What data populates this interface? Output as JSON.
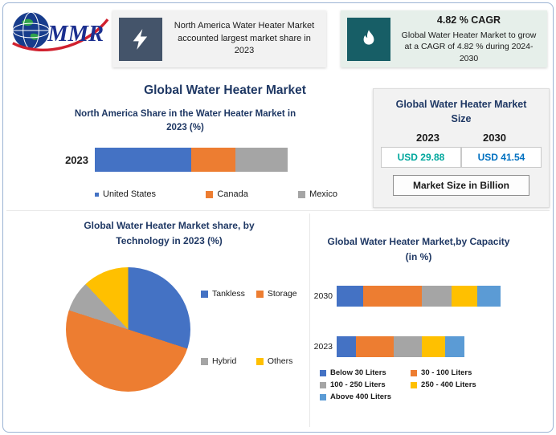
{
  "page": {
    "main_title": "Global Water Heater Market"
  },
  "logo": {
    "text": "MMR"
  },
  "badges": {
    "north_america": {
      "icon": "lightning-bolt-icon",
      "text": "North America Water Heater Market accounted largest market share in 2023"
    },
    "cagr": {
      "icon": "flame-icon",
      "title": "4.82 % CAGR",
      "text": "Global Water Heater Market to grow at a CAGR of 4.82 % during 2024-2030"
    }
  },
  "market_size_panel": {
    "title": "Global Water Heater Market Size",
    "year_left": "2023",
    "year_right": "2030",
    "value_left": "USD 29.88",
    "value_right": "USD 41.54",
    "value_left_color": "#00A79D",
    "value_right_color": "#0070C0",
    "footer": "Market Size in Billion"
  },
  "chart_data": [
    {
      "type": "bar",
      "variant": "stacked-horizontal",
      "title": "North America Share in the Water Heater Market in 2023 (%)",
      "categories": [
        "2023"
      ],
      "series": [
        {
          "name": "United States",
          "color": "#4472C4",
          "values": [
            50
          ]
        },
        {
          "name": "Canada",
          "color": "#ED7D31",
          "values": [
            23
          ]
        },
        {
          "name": "Mexico",
          "color": "#A5A5A5",
          "values": [
            27
          ]
        }
      ],
      "xlim": [
        0,
        100
      ],
      "grid": false,
      "legend_position": "bottom"
    },
    {
      "type": "pie",
      "title": "Global Water Heater Market share, by Technology in 2023  (%)",
      "slices": [
        {
          "label": "Tankless",
          "color": "#4472C4",
          "value": 30
        },
        {
          "label": "Storage",
          "color": "#ED7D31",
          "value": 50
        },
        {
          "label": "Hybrid",
          "color": "#A5A5A5",
          "value": 8
        },
        {
          "label": "Others",
          "color": "#FFC000",
          "value": 12
        }
      ],
      "legend_position": "right"
    },
    {
      "type": "bar",
      "variant": "stacked-horizontal",
      "title": "Global Water Heater Market,by Capacity (in %)",
      "categories": [
        "2030",
        "2023"
      ],
      "series": [
        {
          "name": "Below 30 Liters",
          "color": "#4472C4",
          "values": [
            16,
            12
          ]
        },
        {
          "name": "30 - 100 Liters",
          "color": "#ED7D31",
          "values": [
            36,
            23
          ]
        },
        {
          "name": "100 - 250 Liters",
          "color": "#A5A5A5",
          "values": [
            18,
            17
          ]
        },
        {
          "name": "250 - 400 Liters",
          "color": "#FFC000",
          "values": [
            16,
            14
          ]
        },
        {
          "name": "Above 400 Liters",
          "color": "#5B9BD5",
          "values": [
            14,
            12
          ]
        }
      ],
      "xlim": [
        0,
        100
      ],
      "grid": false,
      "legend_position": "bottom"
    }
  ]
}
